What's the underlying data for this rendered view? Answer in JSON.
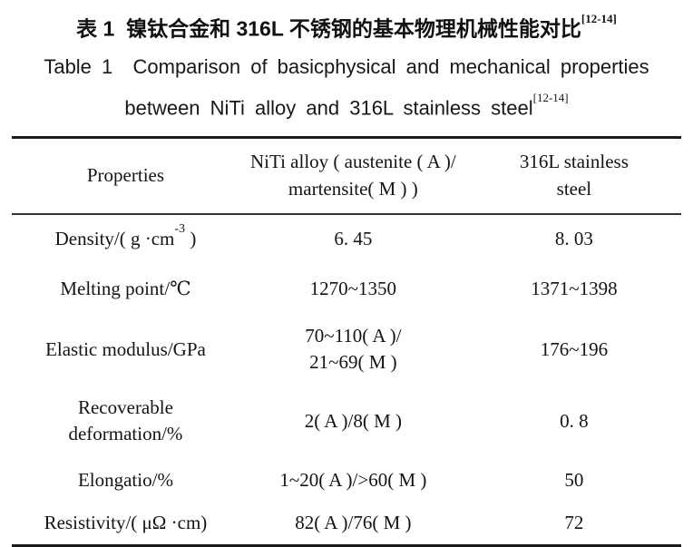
{
  "caption": {
    "zh_main": "表 1  镍钛合金和 316L 不锈钢的基本物理机械性能对比",
    "zh_sup": "[12-14]",
    "en_line1": "Table 1  Comparison of basicphysical and mechanical properties",
    "en_line2_main": "between NiTi alloy and 316L stainless steel",
    "en_sup": "[12-14]"
  },
  "table": {
    "header": {
      "col1": "Properties",
      "col2": "NiTi alloy ( austenite ( A )/\nmartensite( M ) )",
      "col3": "316L stainless\nsteel"
    },
    "rows": [
      {
        "property_pre": "Density/( g ·cm",
        "property_sup": "-3",
        "property_post": " )",
        "niti": "6. 45",
        "steel": "8. 03"
      },
      {
        "property": "Melting point/℃",
        "niti": "1270~1350",
        "steel": "1371~1398"
      },
      {
        "property": "Elastic modulus/GPa",
        "niti": "70~110( A )/\n21~69( M )",
        "steel": "176~196"
      },
      {
        "property": "Recoverable\ndeformation/%",
        "niti": "2( A )/8( M )",
        "steel": "0. 8"
      },
      {
        "property": "Elongatio/%",
        "niti": "1~20( A )/>60( M )",
        "steel": "50"
      },
      {
        "property": "Resistivity/( μΩ ·cm)",
        "niti": "82( A )/76( M )",
        "steel": "72"
      }
    ]
  }
}
